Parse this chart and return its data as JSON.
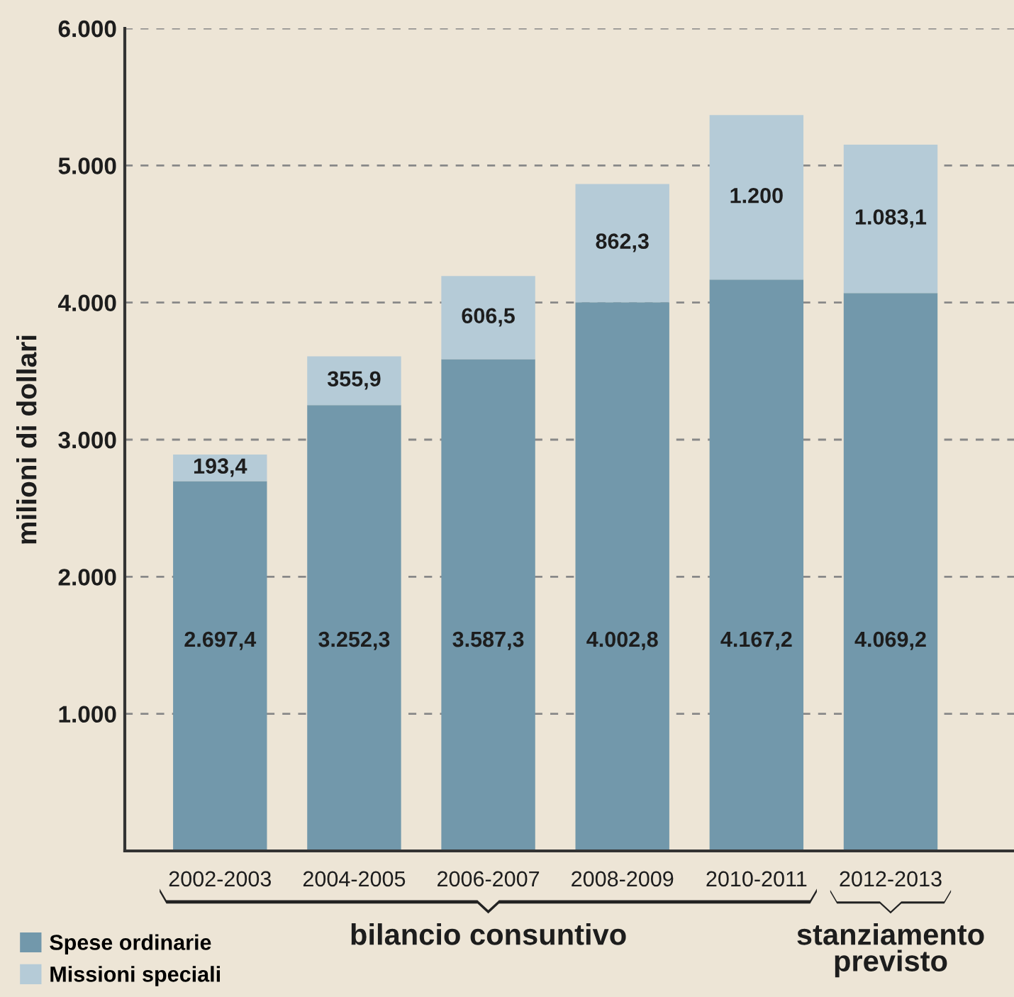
{
  "chart_data": {
    "type": "bar",
    "stacked": true,
    "ylabel": "milioni di dollari",
    "categories": [
      "2002-2003",
      "2004-2005",
      "2006-2007",
      "2008-2009",
      "2010-2011",
      "2012-2013"
    ],
    "series": [
      {
        "name": "Spese ordinarie",
        "color": "#7298ab",
        "values": [
          2697.4,
          3252.3,
          3587.3,
          4002.8,
          4167.2,
          4069.2
        ],
        "value_labels": [
          "2.697,4",
          "3.252,3",
          "3.587,3",
          "4.002,8",
          "4.167,2",
          "4.069,2"
        ]
      },
      {
        "name": "Missioni speciali",
        "color": "#b5cbd7",
        "values": [
          193.4,
          355.9,
          606.5,
          862.3,
          1200,
          1083.1
        ],
        "value_labels": [
          "193,4",
          "355,9",
          "606,5",
          "862,3",
          "1.200",
          "1.083,1"
        ]
      }
    ],
    "ylim": [
      0,
      6000
    ],
    "yticks": [
      {
        "value": 1000,
        "label": "1.000"
      },
      {
        "value": 2000,
        "label": "2.000"
      },
      {
        "value": 3000,
        "label": "3.000"
      },
      {
        "value": 4000,
        "label": "4.000"
      },
      {
        "value": 5000,
        "label": "5.000"
      },
      {
        "value": 6000,
        "label": "6.000"
      }
    ],
    "grid": "y",
    "legend": "bottom left",
    "annotations": [
      "bilancio consuntivo",
      "stanziamento\nprevisto"
    ]
  }
}
